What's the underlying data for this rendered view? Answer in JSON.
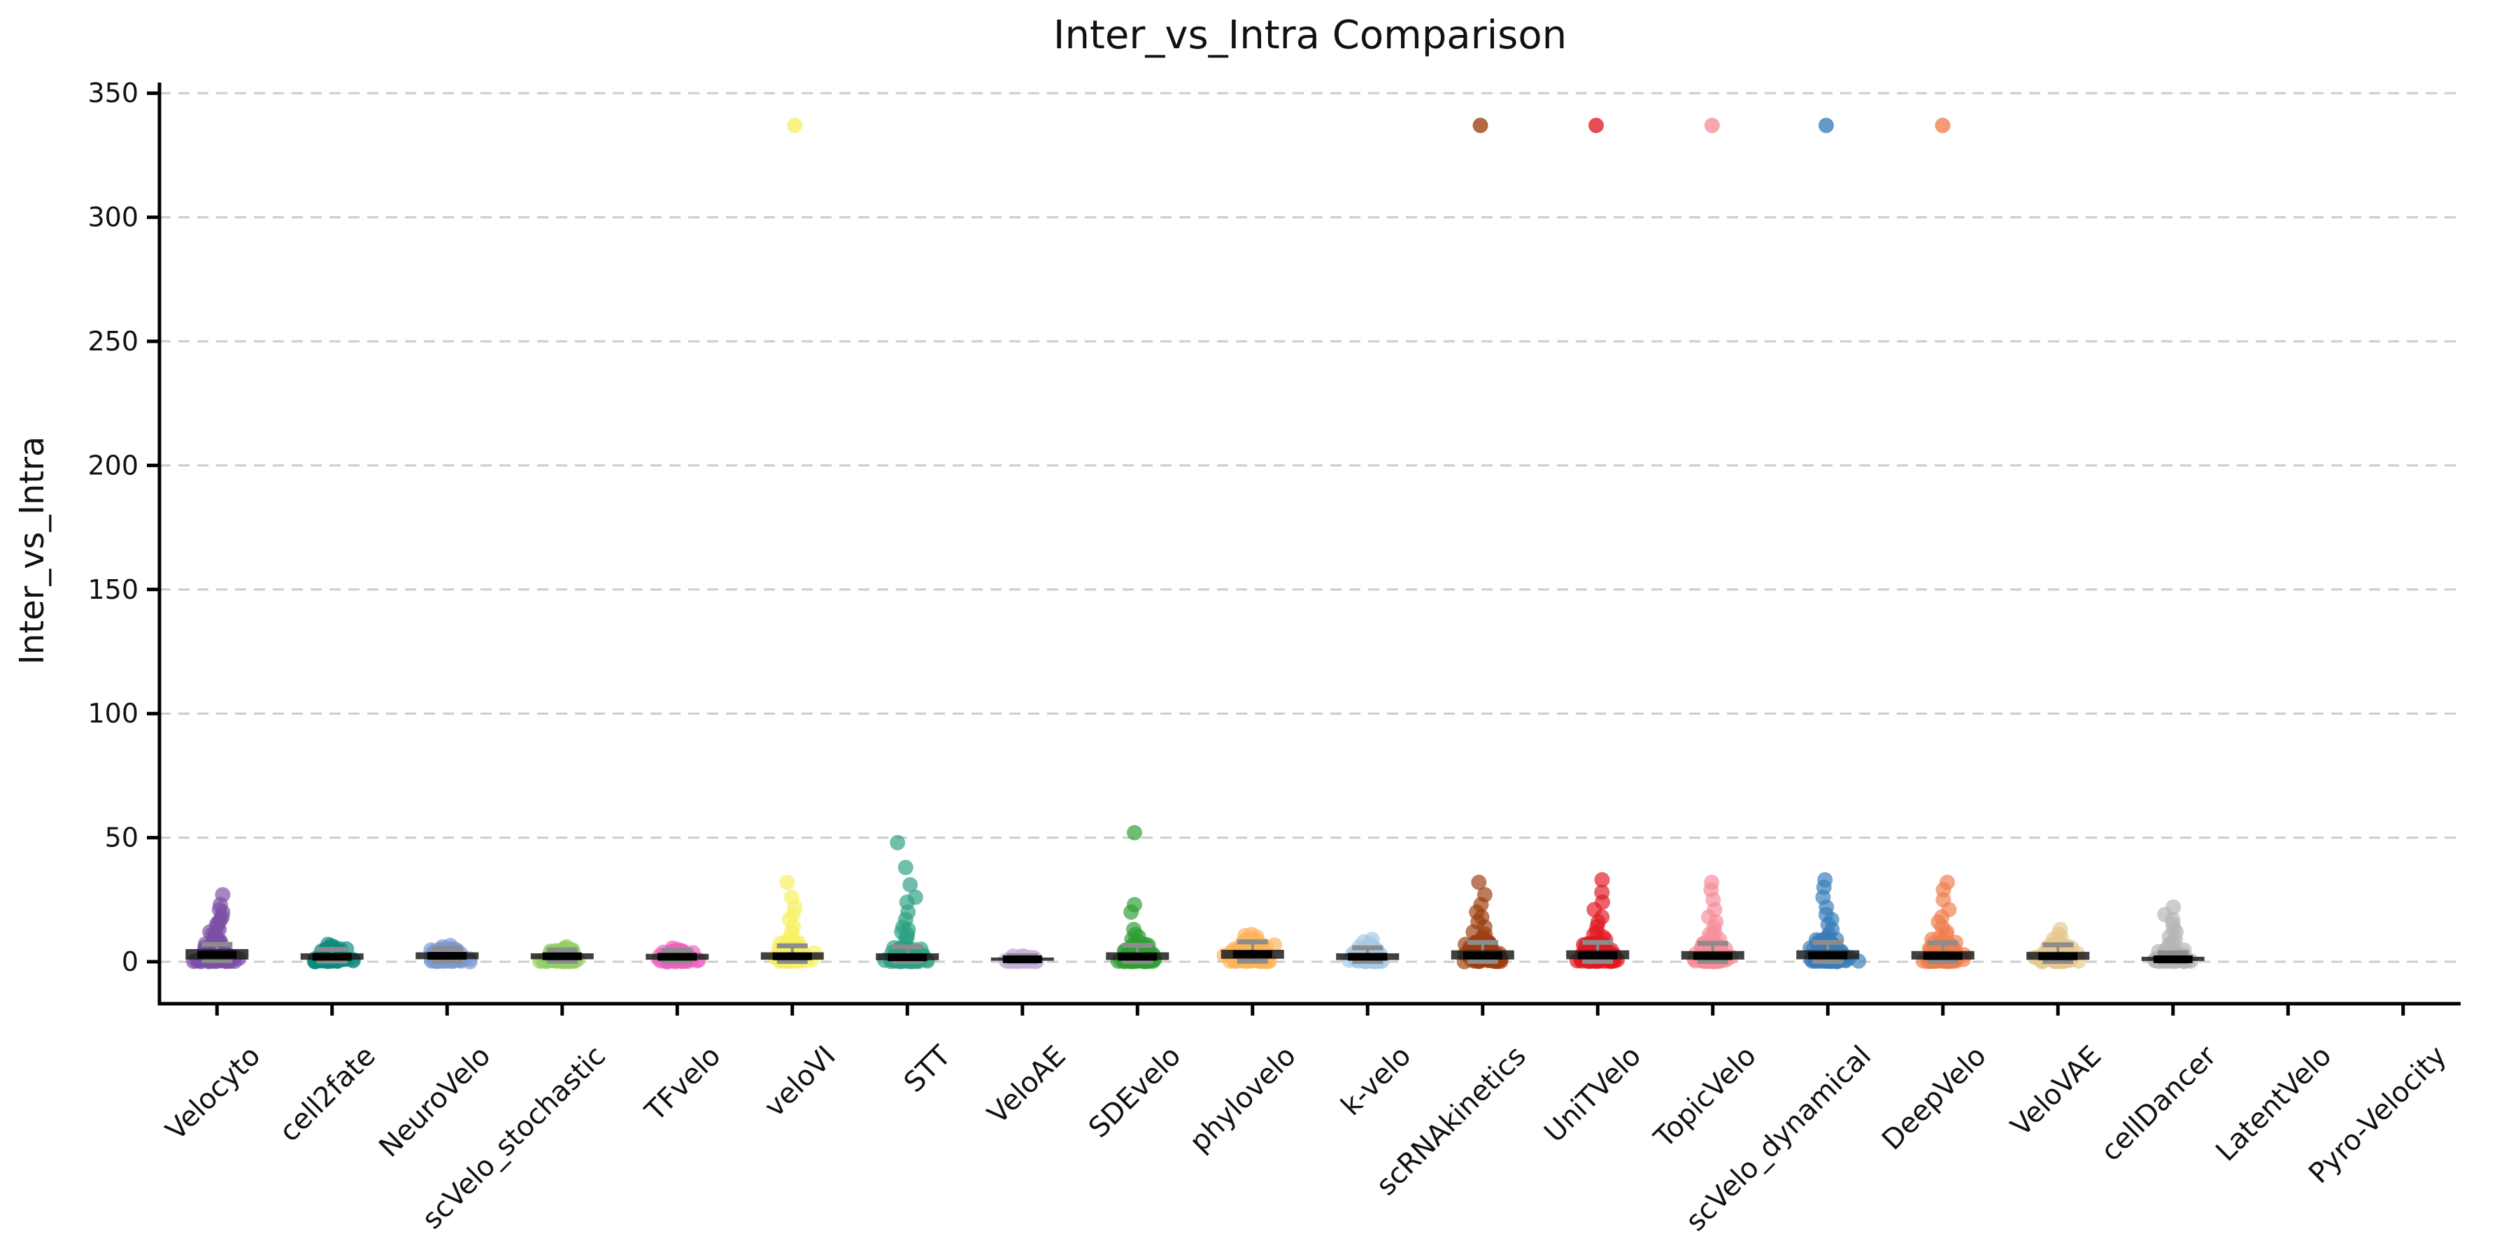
{
  "chart_data": {
    "type": "scatter",
    "variant": "strip-plot-with-boxplots",
    "title": "Inter_vs_Intra Comparison",
    "ylabel": "Inter_vs_Intra",
    "xlabel": "",
    "ylim": [
      -17,
      354
    ],
    "yticks": [
      0,
      50,
      100,
      150,
      200,
      250,
      300,
      350
    ],
    "grid": "horizontal dashed lightgray",
    "legend_position": "none",
    "x_tick_rotation_deg": 45,
    "colors": {
      "box_fill": "#1c1c1c",
      "median": "#000000",
      "whisker": "#8c8c8c",
      "gridline": "#cccccc",
      "axis": "#000000"
    },
    "categories": [
      {
        "label": "Velocyto",
        "color": "#7a4fa3",
        "n_dense": 90,
        "dense_max": 8,
        "jitter": 26,
        "tail": [
          8.5,
          9,
          10,
          10.5,
          11,
          11.5,
          12,
          13,
          14,
          15,
          16,
          17,
          18,
          20,
          21,
          23,
          27
        ],
        "outliers": [],
        "box": {
          "median": 2.8,
          "q1": 0.9,
          "q3": 5.1,
          "whisker_low": 0.5,
          "whisker_high": 7.0
        }
      },
      {
        "label": "cell2fate",
        "color": "#0e8a7e",
        "n_dense": 85,
        "dense_max": 5.5,
        "jitter": 27,
        "tail": [
          6,
          6.5,
          7
        ],
        "outliers": [],
        "box": {
          "median": 2.0,
          "q1": 0.8,
          "q3": 3.4,
          "whisker_low": 0.2,
          "whisker_high": 5.0
        }
      },
      {
        "label": "NeuroVelo",
        "color": "#7e99d1",
        "n_dense": 85,
        "dense_max": 5.5,
        "jitter": 27,
        "tail": [
          6,
          6.5
        ],
        "outliers": [],
        "box": {
          "median": 2.4,
          "q1": 1.0,
          "q3": 3.8,
          "whisker_low": 0.2,
          "whisker_high": 5.4
        }
      },
      {
        "label": "scVelo_stochastic",
        "color": "#92cf66",
        "n_dense": 80,
        "dense_max": 5,
        "jitter": 26,
        "tail": [
          5.5,
          6
        ],
        "outliers": [],
        "box": {
          "median": 2.2,
          "q1": 1.0,
          "q3": 3.4,
          "whisker_low": 0.2,
          "whisker_high": 4.8
        }
      },
      {
        "label": "TFvelo",
        "color": "#ec63bd",
        "n_dense": 85,
        "dense_max": 4.5,
        "jitter": 26,
        "tail": [
          5,
          5.5
        ],
        "outliers": [],
        "box": {
          "median": 2.0,
          "q1": 0.8,
          "q3": 3.2,
          "whisker_low": 0.2,
          "whisker_high": 4.6
        }
      },
      {
        "label": "veloVI",
        "color": "#f6f063",
        "n_dense": 90,
        "dense_max": 8,
        "jitter": 26,
        "tail": [
          9,
          10,
          12,
          14,
          17,
          19,
          22,
          26,
          32
        ],
        "outliers": [
          337
        ],
        "box": {
          "median": 2.2,
          "q1": 0.8,
          "q3": 3.8,
          "whisker_low": 0.1,
          "whisker_high": 6.4
        }
      },
      {
        "label": "STT",
        "color": "#2da183",
        "n_dense": 90,
        "dense_max": 6,
        "jitter": 26,
        "tail": [
          9,
          10,
          11,
          12,
          13,
          14,
          17,
          20,
          24,
          26,
          31,
          38,
          48
        ],
        "outliers": [],
        "box": {
          "median": 1.8,
          "q1": 0.6,
          "q3": 3.4,
          "whisker_low": 0.1,
          "whisker_high": 6.0
        }
      },
      {
        "label": "VeloAE",
        "color": "#c6b0d8",
        "n_dense": 55,
        "dense_max": 2.4,
        "jitter": 22,
        "tail": [],
        "outliers": [],
        "box": {
          "median": 1.0,
          "q1": 0.4,
          "q3": 1.7,
          "whisker_low": 0.05,
          "whisker_high": 2.4
        }
      },
      {
        "label": "SDEvelo",
        "color": "#2f9e33",
        "n_dense": 90,
        "dense_max": 7,
        "jitter": 26,
        "tail": [
          8,
          9,
          10,
          11,
          13,
          20,
          23,
          52
        ],
        "outliers": [],
        "box": {
          "median": 2.0,
          "q1": 0.7,
          "q3": 3.8,
          "whisker_low": 0.1,
          "whisker_high": 6.6
        }
      },
      {
        "label": "phylovelo",
        "color": "#fdb45c",
        "n_dense": 100,
        "dense_max": 9,
        "jitter": 31,
        "tail": [
          10,
          10.5,
          11
        ],
        "outliers": [],
        "box": {
          "median": 3.0,
          "q1": 1.2,
          "q3": 4.8,
          "whisker_low": 0.2,
          "whisker_high": 8.0
        }
      },
      {
        "label": "k-velo",
        "color": "#a7cae6",
        "n_dense": 75,
        "dense_max": 6,
        "jitter": 27,
        "tail": [
          7,
          7.5,
          8,
          9
        ],
        "outliers": [],
        "box": {
          "median": 2.0,
          "q1": 0.7,
          "q3": 3.4,
          "whisker_low": 0.1,
          "whisker_high": 5.6
        }
      },
      {
        "label": "scRNAkinetics",
        "color": "#9c3f10",
        "n_dense": 95,
        "dense_max": 8,
        "jitter": 27,
        "tail": [
          9,
          10,
          11,
          12,
          14,
          16,
          18,
          20,
          23,
          27,
          32
        ],
        "outliers": [
          337
        ],
        "box": {
          "median": 2.5,
          "q1": 0.9,
          "q3": 4.6,
          "whisker_low": 0.1,
          "whisker_high": 7.8
        }
      },
      {
        "label": "UniTVelo",
        "color": "#e01b24",
        "n_dense": 100,
        "dense_max": 8,
        "jitter": 27,
        "tail": [
          9,
          10,
          11,
          12,
          14,
          16,
          18,
          21,
          24,
          28,
          33
        ],
        "outliers": [
          337
        ],
        "box": {
          "median": 2.5,
          "q1": 1.0,
          "q3": 4.6,
          "whisker_low": 0.15,
          "whisker_high": 7.8
        }
      },
      {
        "label": "TopicVelo",
        "color": "#f68e9b",
        "n_dense": 95,
        "dense_max": 8,
        "jitter": 27,
        "tail": [
          9,
          10,
          11,
          12,
          14,
          16,
          18,
          21,
          25,
          29,
          32
        ],
        "outliers": [
          337
        ],
        "box": {
          "median": 2.3,
          "q1": 0.9,
          "q3": 4.3,
          "whisker_low": 0.1,
          "whisker_high": 7.4
        }
      },
      {
        "label": "scVelo_dynamical",
        "color": "#3a7eb8",
        "n_dense": 100,
        "dense_max": 9,
        "jitter": 27,
        "tail": [
          9,
          10,
          11,
          13,
          15,
          17,
          19,
          22,
          26,
          30,
          33
        ],
        "outliers": [
          337
        ],
        "box": {
          "median": 2.5,
          "q1": 1.0,
          "q3": 4.6,
          "whisker_low": 0.1,
          "whisker_high": 7.8
        }
      },
      {
        "label": "DeepVelo",
        "color": "#ef7f4e",
        "n_dense": 95,
        "dense_max": 8,
        "jitter": 27,
        "tail": [
          9,
          10,
          11,
          12,
          14,
          16,
          18,
          21,
          25,
          29,
          32
        ],
        "outliers": [
          337
        ],
        "box": {
          "median": 2.3,
          "q1": 0.9,
          "q3": 4.3,
          "whisker_low": 0.1,
          "whisker_high": 7.6
        }
      },
      {
        "label": "VeloVAE",
        "color": "#e5c98f",
        "n_dense": 70,
        "dense_max": 7,
        "jitter": 27,
        "tail": [
          8,
          9,
          10,
          11,
          13
        ],
        "outliers": [],
        "box": {
          "median": 2.2,
          "q1": 0.8,
          "q3": 4.0,
          "whisker_low": 0.1,
          "whisker_high": 6.8
        }
      },
      {
        "label": "cellDancer",
        "color": "#b5b5b5",
        "n_dense": 70,
        "dense_max": 5,
        "jitter": 25,
        "tail": [
          6,
          7,
          8,
          9,
          10,
          12,
          13,
          15,
          17,
          19,
          22
        ],
        "outliers": [],
        "box": {
          "median": 1.0,
          "q1": 0.3,
          "q3": 2.0,
          "whisker_low": 0.05,
          "whisker_high": 3.6
        }
      },
      {
        "label": "LatentVelo",
        "color": null,
        "n_dense": 0,
        "dense_max": 0,
        "jitter": 0,
        "tail": [],
        "outliers": [],
        "box": null
      },
      {
        "label": "Pyro-Velocity",
        "color": null,
        "n_dense": 0,
        "dense_max": 0,
        "jitter": 0,
        "tail": [],
        "outliers": [],
        "box": null
      }
    ]
  }
}
